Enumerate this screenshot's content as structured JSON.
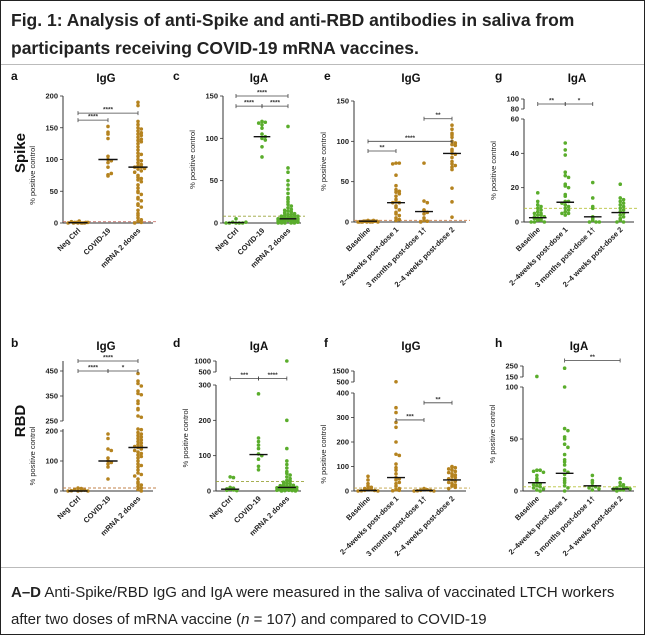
{
  "figure": {
    "title": "Fig. 1: Analysis of anti-Spike and anti-RBD antibodies in saliva from participants receiving COVID-19 mRNA vaccines.",
    "row_labels": [
      "Spike",
      "RBD"
    ],
    "y_label": "% positive control",
    "colors": {
      "IgG": "#b5831f",
      "IgA": "#5aad2c",
      "median": "#111111"
    }
  },
  "caption": {
    "panel_ref": "A–D",
    "text_1": " Anti-Spike/RBD IgG and IgA were measured in the saliva of vaccinated LTCH workers after two doses of mRNA vaccine (",
    "n_var": "n",
    "text_2": " = 107) and compared to COVID-19"
  },
  "chart_data": [
    {
      "id": "a",
      "type": "scatter",
      "title": "IgG",
      "antigen": "Spike",
      "isotype": "IgG",
      "ylabel": "% positive control",
      "yticks": [
        0,
        50,
        100,
        150,
        200
      ],
      "threshold": 2,
      "threshold_color": "#c9746b",
      "groups": [
        {
          "label": "Neg Ctrl",
          "median": 0.5,
          "values": [
            0,
            0,
            1,
            0,
            2,
            1,
            0,
            3,
            1,
            0,
            0,
            1
          ]
        },
        {
          "label": "COVID-19",
          "median": 100,
          "values": [
            152,
            143,
            140,
            133,
            105,
            100,
            98,
            95,
            88,
            76,
            74,
            78
          ]
        },
        {
          "label": "mRNA 2 doses",
          "median": 88,
          "values": [
            190,
            185,
            160,
            155,
            150,
            148,
            145,
            142,
            140,
            138,
            135,
            132,
            130,
            128,
            125,
            120,
            115,
            110,
            108,
            105,
            100,
            98,
            95,
            92,
            90,
            88,
            88,
            86,
            85,
            82,
            80,
            75,
            72,
            70,
            68,
            65,
            60,
            55,
            50,
            48,
            45,
            40,
            38,
            35,
            30,
            28,
            25,
            20,
            15,
            12,
            8,
            5,
            3,
            1,
            0
          ]
        }
      ],
      "significance": [
        {
          "from": 0,
          "to": 1,
          "label": "****",
          "y": 162
        },
        {
          "from": 0,
          "to": 2,
          "label": "****",
          "y": 173
        }
      ]
    },
    {
      "id": "c",
      "type": "scatter",
      "title": "IgA",
      "antigen": "Spike",
      "isotype": "IgA",
      "ylabel": "% positive control",
      "yticks": [
        0,
        50,
        100,
        150
      ],
      "threshold": 8,
      "threshold_color": "#9aa43a",
      "groups": [
        {
          "label": "Neg Ctrl",
          "median": 0.5,
          "values": [
            0,
            0,
            1,
            5,
            0,
            0,
            1,
            0
          ]
        },
        {
          "label": "COVID-19",
          "median": 102,
          "values": [
            120,
            119,
            118,
            116,
            112,
            105,
            102,
            100,
            98,
            90,
            78
          ]
        },
        {
          "label": "mRNA 2 doses",
          "median": 5,
          "values": [
            114,
            65,
            60,
            50,
            45,
            40,
            35,
            30,
            28,
            25,
            22,
            20,
            18,
            16,
            15,
            14,
            13,
            12,
            11,
            10,
            10,
            9,
            9,
            8,
            8,
            7,
            7,
            6,
            6,
            6,
            5,
            5,
            5,
            5,
            4,
            4,
            4,
            4,
            3,
            3,
            3,
            3,
            2,
            2,
            2,
            2,
            1,
            1,
            1,
            1,
            0,
            0,
            0,
            0,
            0
          ]
        }
      ],
      "significance": [
        {
          "from": 0,
          "to": 1,
          "label": "****",
          "y": 138
        },
        {
          "from": 1,
          "to": 2,
          "label": "****",
          "y": 138
        },
        {
          "from": 0,
          "to": 2,
          "label": "****",
          "y": 150
        }
      ]
    },
    {
      "id": "e",
      "type": "scatter",
      "title": "IgG",
      "antigen": "Spike",
      "isotype": "IgG",
      "ylabel": "% positive control",
      "yticks": [
        0,
        50,
        100,
        150
      ],
      "threshold": 2,
      "threshold_color": "#d08a5a",
      "groups": [
        {
          "label": "Baseline",
          "median": 1,
          "values": [
            2,
            1,
            1,
            1,
            0,
            0,
            0,
            0,
            1,
            2,
            0,
            1,
            0,
            1,
            0,
            0,
            1
          ]
        },
        {
          "label": "2–4weeks post-dose 1",
          "median": 24,
          "values": [
            73,
            73,
            72,
            58,
            45,
            40,
            38,
            37,
            35,
            32,
            28,
            25,
            24,
            24,
            20,
            18,
            15,
            12,
            10,
            8,
            5,
            3,
            2
          ]
        },
        {
          "label": "3 months post-dose 1†",
          "median": 13,
          "values": [
            73,
            26,
            24,
            15,
            14,
            12,
            10,
            5,
            2,
            1,
            0
          ]
        },
        {
          "label": "2–4 weeks post-dose 2",
          "median": 85,
          "values": [
            120,
            115,
            110,
            108,
            105,
            100,
            98,
            96,
            95,
            90,
            88,
            85,
            84,
            80,
            75,
            72,
            70,
            68,
            65,
            42,
            25,
            6
          ]
        }
      ],
      "significance": [
        {
          "from": 0,
          "to": 1,
          "label": "**",
          "y": 88
        },
        {
          "from": 0,
          "to": 3,
          "label": "****",
          "y": 100
        },
        {
          "from": 2,
          "to": 3,
          "label": "**",
          "y": 128
        }
      ]
    },
    {
      "id": "g",
      "type": "scatter",
      "title": "IgA",
      "antigen": "Spike",
      "isotype": "IgA",
      "ylabel": "% positive control",
      "yticks": [
        0,
        20,
        40,
        60,
        80,
        100
      ],
      "threshold": 8,
      "threshold_color": "#b7c23a",
      "groups": [
        {
          "label": "Baseline",
          "median": 2.5,
          "values": [
            17,
            12,
            10,
            9,
            8,
            7,
            6,
            5,
            5,
            4,
            4,
            3,
            3,
            2,
            2,
            2,
            1,
            1,
            0,
            0,
            0
          ]
        },
        {
          "label": "2–4weeks post-dose 1",
          "median": 11.5,
          "values": [
            46,
            42,
            39,
            29,
            27,
            26,
            22,
            21,
            20,
            16,
            15,
            12,
            12,
            11,
            10,
            9,
            8,
            7,
            6,
            5,
            5,
            4
          ]
        },
        {
          "label": "3 months post-dose 1†",
          "median": 3,
          "values": [
            23,
            14,
            9,
            8,
            3,
            2,
            1,
            0,
            0,
            0
          ]
        },
        {
          "label": "2–4 weeks post-dose 2",
          "median": 5.5,
          "values": [
            22,
            14,
            13,
            12,
            11,
            10,
            9,
            8,
            7,
            6,
            5,
            4,
            3,
            2,
            1,
            0,
            0
          ]
        }
      ],
      "significance": [
        {
          "from": 0,
          "to": 1,
          "label": "**",
          "y": 90
        },
        {
          "from": 1,
          "to": 2,
          "label": "*",
          "y": 90
        }
      ]
    },
    {
      "id": "b",
      "type": "scatter",
      "title": "IgG",
      "antigen": "RBD",
      "isotype": "IgG",
      "ylabel": "% positive control",
      "yticks": [
        0,
        100,
        200,
        250,
        350,
        450
      ],
      "threshold": 10,
      "threshold_color": "#c0804a",
      "groups": [
        {
          "label": "Neg Ctrl",
          "median": 0,
          "values": [
            0,
            2,
            5,
            10,
            8,
            3,
            1,
            0,
            0
          ]
        },
        {
          "label": "COVID-19",
          "median": 100,
          "values": [
            190,
            175,
            140,
            135,
            110,
            100,
            95,
            90,
            80,
            40
          ]
        },
        {
          "label": "mRNA 2 doses",
          "median": 145,
          "values": [
            440,
            410,
            400,
            390,
            370,
            360,
            355,
            330,
            320,
            300,
            295,
            270,
            265,
            230,
            220,
            195,
            190,
            185,
            180,
            175,
            170,
            165,
            160,
            155,
            150,
            148,
            145,
            140,
            135,
            130,
            125,
            120,
            115,
            110,
            100,
            90,
            85,
            80,
            70,
            60,
            55,
            50,
            40,
            30,
            25,
            20,
            15,
            10,
            5,
            0
          ]
        }
      ],
      "significance": [
        {
          "from": 0,
          "to": 1,
          "label": "****",
          "y": 450
        },
        {
          "from": 1,
          "to": 2,
          "label": "*",
          "y": 450
        },
        {
          "from": 0,
          "to": 2,
          "label": "****",
          "y": 480
        }
      ]
    },
    {
      "id": "d",
      "type": "scatter",
      "title": "IgA",
      "antigen": "RBD",
      "isotype": "IgA",
      "ylabel": "% positive control",
      "yticks": [
        0,
        100,
        200,
        300,
        500,
        1000
      ],
      "threshold": 27,
      "threshold_color": "#9aa43a",
      "groups": [
        {
          "label": "Neg Ctrl",
          "median": 5,
          "values": [
            40,
            38,
            10,
            8,
            6,
            5,
            3,
            2,
            1
          ]
        },
        {
          "label": "COVID-19",
          "median": 103,
          "values": [
            275,
            150,
            140,
            130,
            120,
            105,
            100,
            90,
            70,
            60
          ]
        },
        {
          "label": "mRNA 2 doses",
          "median": 10,
          "values": [
            1000,
            200,
            120,
            85,
            75,
            65,
            55,
            50,
            45,
            40,
            35,
            30,
            28,
            25,
            22,
            20,
            18,
            16,
            15,
            14,
            12,
            12,
            11,
            10,
            10,
            9,
            9,
            8,
            8,
            7,
            7,
            6,
            6,
            5,
            5,
            4,
            4,
            3,
            3,
            2,
            2,
            1,
            1,
            0,
            0
          ]
        }
      ],
      "significance": [
        {
          "from": 0,
          "to": 1,
          "label": "***",
          "y": 400
        },
        {
          "from": 1,
          "to": 2,
          "label": "****",
          "y": 400
        }
      ]
    },
    {
      "id": "f",
      "type": "scatter",
      "title": "IgG",
      "antigen": "RBD",
      "isotype": "IgG",
      "ylabel": "% positive control",
      "yticks": [
        0,
        100,
        200,
        300,
        400,
        500,
        1500
      ],
      "threshold": 12,
      "threshold_color": "#c0a040",
      "groups": [
        {
          "label": "Baseline",
          "median": 2,
          "values": [
            60,
            45,
            30,
            20,
            15,
            10,
            8,
            5,
            3,
            2,
            1,
            0,
            0
          ]
        },
        {
          "label": "2–4weeks post-dose 1",
          "median": 55,
          "values": [
            520,
            340,
            320,
            280,
            260,
            200,
            150,
            145,
            110,
            95,
            85,
            70,
            55,
            50,
            45,
            35,
            30,
            20,
            10,
            5,
            3,
            1
          ]
        },
        {
          "label": "3 months post-dose 1†",
          "median": 2,
          "values": [
            10,
            8,
            5,
            3,
            2,
            1,
            0,
            0
          ]
        },
        {
          "label": "2–4 weeks post-dose 2",
          "median": 45,
          "values": [
            100,
            98,
            95,
            90,
            85,
            80,
            75,
            70,
            65,
            60,
            55,
            50,
            45,
            40,
            35,
            30,
            25,
            20,
            15,
            10
          ]
        }
      ],
      "significance": [
        {
          "from": 1,
          "to": 2,
          "label": "***",
          "y": 290
        },
        {
          "from": 2,
          "to": 3,
          "label": "**",
          "y": 360
        }
      ]
    },
    {
      "id": "h",
      "type": "scatter",
      "title": "IgA",
      "antigen": "RBD",
      "isotype": "IgA",
      "ylabel": "% positive control",
      "yticks": [
        0,
        50,
        100,
        150,
        250
      ],
      "threshold": 4,
      "threshold_color": "#b7c23a",
      "groups": [
        {
          "label": "Baseline",
          "median": 8,
          "values": [
            155,
            20,
            20,
            19,
            18,
            15,
            12,
            10,
            8,
            7,
            6,
            5,
            4,
            3,
            2,
            1,
            0
          ]
        },
        {
          "label": "2–4weeks post-dose 1",
          "median": 17,
          "values": [
            230,
            100,
            60,
            58,
            52,
            50,
            45,
            42,
            35,
            30,
            28,
            25,
            20,
            18,
            16,
            12,
            10,
            8,
            5,
            3,
            0
          ]
        },
        {
          "label": "3 months post-dose 1†",
          "median": 5,
          "values": [
            15,
            10,
            8,
            5,
            4,
            3,
            2,
            1
          ]
        },
        {
          "label": "2–4 weeks post-dose 2",
          "median": 2,
          "values": [
            12,
            8,
            6,
            5,
            4,
            3,
            3,
            2,
            2,
            1,
            1,
            0
          ]
        }
      ],
      "significance": [
        {
          "from": 1,
          "to": 3,
          "label": "**",
          "y": 300
        }
      ]
    }
  ]
}
